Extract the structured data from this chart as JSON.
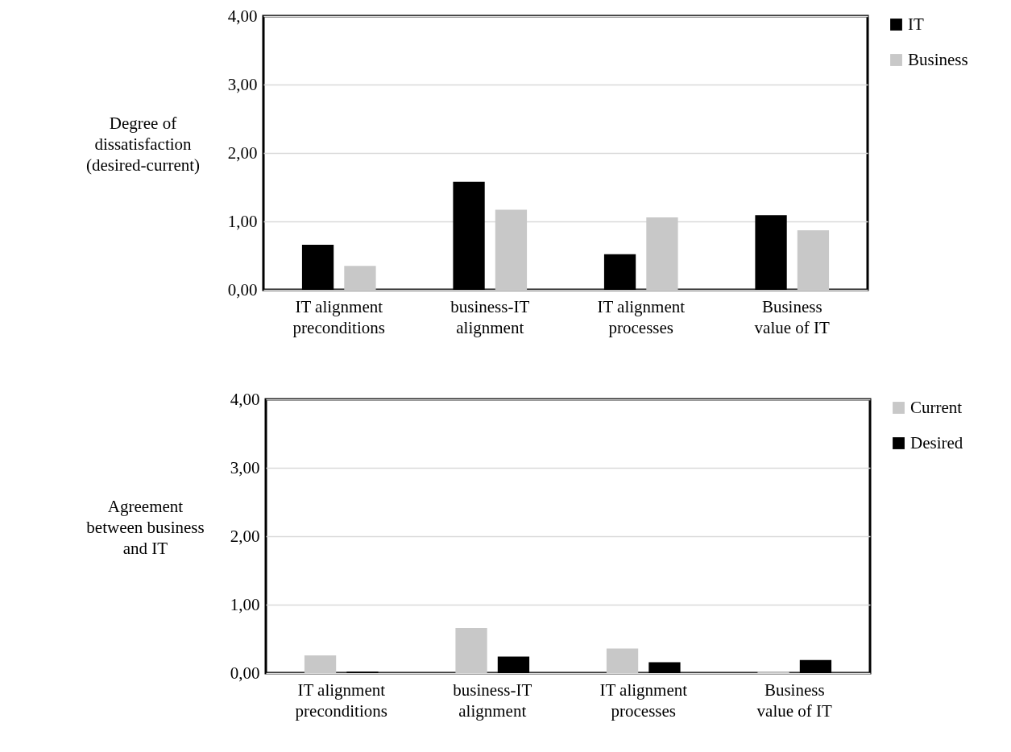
{
  "chart_data": [
    {
      "type": "bar",
      "ylabel": "Degree of dissatisfaction (desired-current)",
      "categories": [
        "IT alignment preconditions",
        "business-IT alignment",
        "IT alignment processes",
        "Business value of IT"
      ],
      "series": [
        {
          "name": "IT",
          "color": "#000000",
          "values": [
            0.66,
            1.58,
            0.52,
            1.09
          ]
        },
        {
          "name": "Business",
          "color": "#c8c8c8",
          "values": [
            0.35,
            1.17,
            1.06,
            0.87
          ]
        }
      ],
      "ylim": [
        0,
        4
      ],
      "yticks": [
        {
          "value": 0,
          "label": "0,00"
        },
        {
          "value": 1,
          "label": "1,00"
        },
        {
          "value": 2,
          "label": "2,00"
        },
        {
          "value": 3,
          "label": "3,00"
        },
        {
          "value": 4,
          "label": "4,00"
        }
      ],
      "grid": "y",
      "legend": "right"
    },
    {
      "type": "bar",
      "ylabel": "Agreement between business and IT",
      "categories": [
        "IT alignment preconditions",
        "business-IT alignment",
        "IT alignment processes",
        "Business value of IT"
      ],
      "series": [
        {
          "name": "Current",
          "color": "#c8c8c8",
          "values": [
            0.26,
            0.66,
            0.36,
            0.02
          ]
        },
        {
          "name": "Desired",
          "color": "#000000",
          "values": [
            0.02,
            0.24,
            0.16,
            0.19
          ]
        }
      ],
      "ylim": [
        0,
        4
      ],
      "yticks": [
        {
          "value": 0,
          "label": "0,00"
        },
        {
          "value": 1,
          "label": "1,00"
        },
        {
          "value": 2,
          "label": "2,00"
        },
        {
          "value": 3,
          "label": "3,00"
        },
        {
          "value": 4,
          "label": "4,00"
        }
      ],
      "grid": "y",
      "legend": "right"
    }
  ]
}
